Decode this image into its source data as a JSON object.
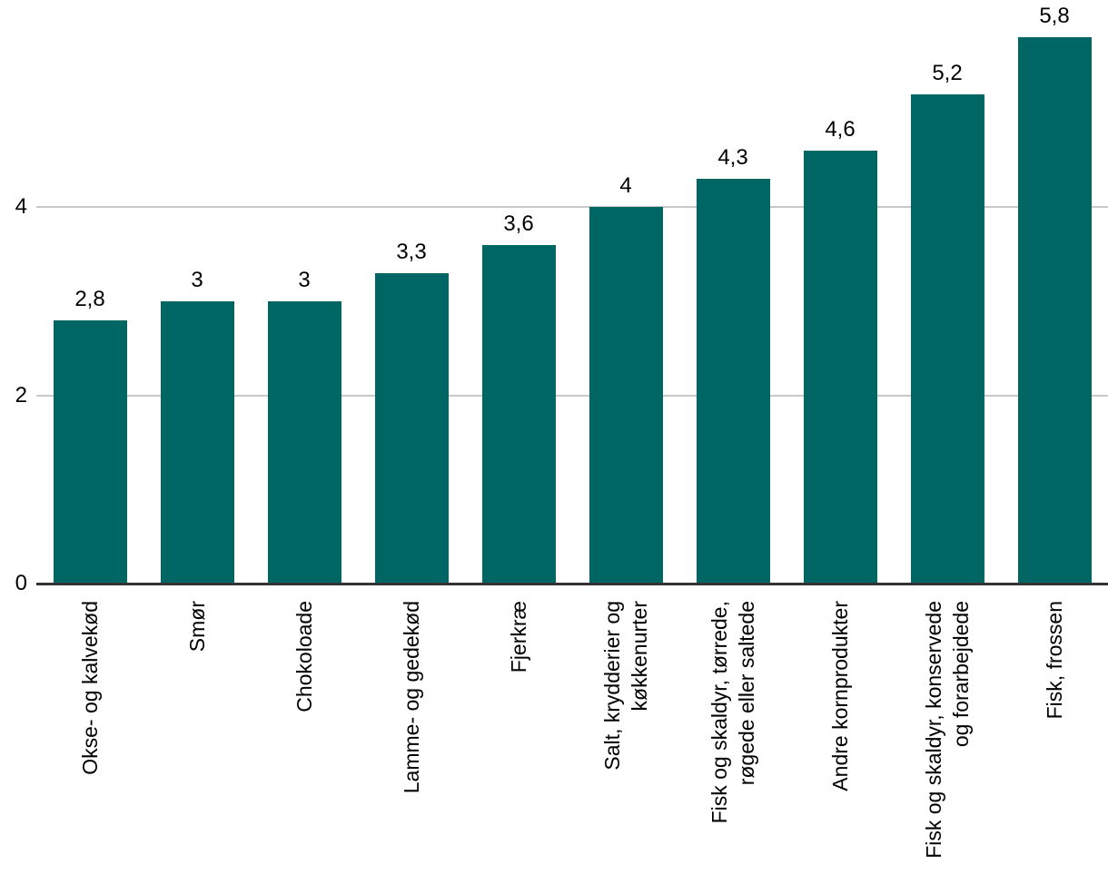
{
  "chart_data": {
    "type": "bar",
    "title": "",
    "xlabel": "",
    "ylabel": "",
    "categories": [
      "Okse- og kalvekød",
      "Smør",
      "Chokoloade",
      "Lamme- og gedekød",
      "Fjerkræ",
      "Salt, krydderier og\nkøkkenurter",
      "Fisk og skaldyr, tørrede,\nrøgede eller saltede",
      "Andre kornprodukter",
      "Fisk og skaldyr, konservede\nog forarbejdede",
      "Fisk, frossen"
    ],
    "values": [
      2.8,
      3,
      3,
      3.3,
      3.6,
      4,
      4.3,
      4.6,
      5.2,
      5.8
    ],
    "value_labels": [
      "2,8",
      "3",
      "3",
      "3,3",
      "3,6",
      "4",
      "4,3",
      "4,6",
      "5,2",
      "5,8"
    ],
    "yticks": [
      {
        "value": 0,
        "label": "0"
      },
      {
        "value": 2,
        "label": "2"
      },
      {
        "value": 4,
        "label": "4"
      }
    ],
    "gridline_values": [
      2,
      4
    ],
    "ylim": [
      0,
      6
    ],
    "grid": "horizontal",
    "legend": "none",
    "colors": {
      "bar": "#006663",
      "gridline": "#c8c8c8",
      "axis": "#333333",
      "text": "#000000",
      "background": "#ffffff"
    }
  }
}
